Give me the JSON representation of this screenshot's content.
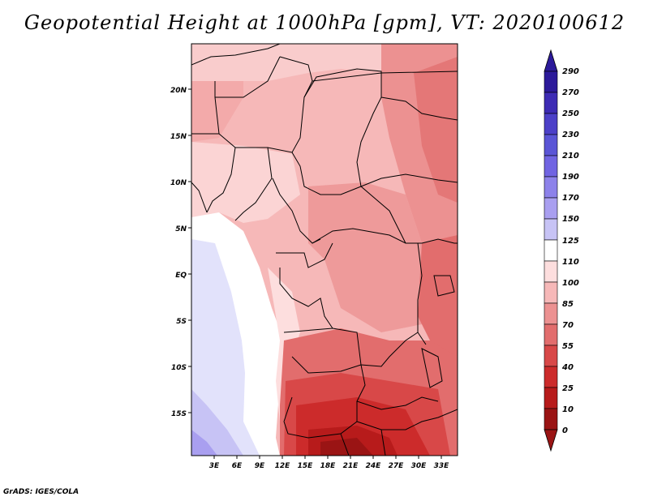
{
  "title": "Geopotential Height at 1000hPa [gpm], VT: 2020100612",
  "footer": "GrADS: IGES/COLA",
  "map": {
    "lat_labels": [
      "20N",
      "15N",
      "10N",
      "5N",
      "EQ",
      "5S",
      "10S",
      "15S"
    ],
    "lon_labels": [
      "3E",
      "6E",
      "9E",
      "12E",
      "15E",
      "18E",
      "21E",
      "24E",
      "27E",
      "30E",
      "33E"
    ]
  },
  "colorbar": {
    "levels": [
      "290",
      "270",
      "250",
      "230",
      "210",
      "190",
      "170",
      "150",
      "125",
      "110",
      "100",
      "85",
      "70",
      "55",
      "40",
      "25",
      "10",
      "0"
    ],
    "colors": [
      "#2c1a9a",
      "#3d2bb4",
      "#4c40c8",
      "#5a55d6",
      "#7064e2",
      "#8d82ea",
      "#a99ff0",
      "#c7c3f5",
      "#e2e2fb",
      "#ffffff",
      "#fddede",
      "#f6b8b8",
      "#ec9191",
      "#e26d6d",
      "#d84848",
      "#cc2b2b",
      "#b71b1b",
      "#9a1414"
    ]
  },
  "icons": {
    "colorbar_top": "triangle-up-icon",
    "colorbar_bottom": "triangle-down-icon"
  }
}
